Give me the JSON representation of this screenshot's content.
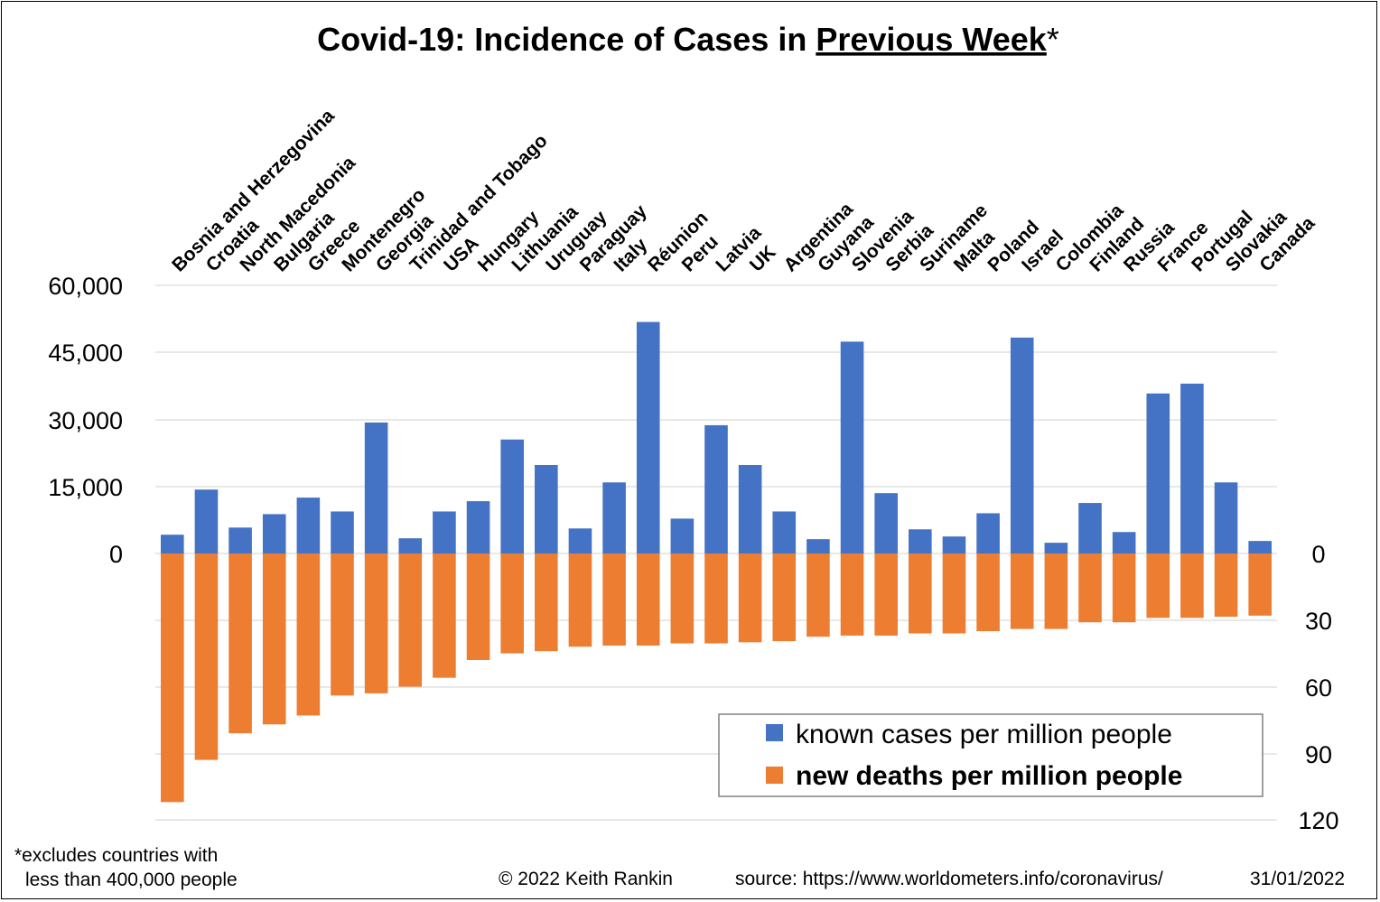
{
  "chart_data": {
    "type": "bar",
    "title": {
      "prefix": "Covid-19: Incidence of Cases in ",
      "underlined": "Previous Week",
      "suffix": "*"
    },
    "categories": [
      "Bosnia and Herzegovina",
      "Croatia",
      "North Macedonia",
      "Bulgaria",
      "Greece",
      "Montenegro",
      "Georgia",
      "Trinidad and Tobago",
      "USA",
      "Hungary",
      "Lithuania",
      "Uruguay",
      "Paraguay",
      "Italy",
      "Réunion",
      "Peru",
      "Latvia",
      "UK",
      "Argentina",
      "Guyana",
      "Slovenia",
      "Serbia",
      "Suriname",
      "Malta",
      "Poland",
      "Israel",
      "Colombia",
      "Finland",
      "Russia",
      "France",
      "Portugal",
      "Slovakia",
      "Canada"
    ],
    "series": [
      {
        "name": "known cases per million people",
        "axis": "left",
        "color": "#4472c4",
        "values": [
          4200,
          14300,
          5800,
          8800,
          12500,
          9400,
          29300,
          3400,
          9400,
          11700,
          25500,
          19800,
          5600,
          15900,
          51800,
          7800,
          28700,
          19800,
          9400,
          3200,
          47400,
          13500,
          5400,
          3800,
          9000,
          48300,
          2400,
          11300,
          4800,
          35800,
          38000,
          15900,
          2800
        ]
      },
      {
        "name": "new deaths per million people",
        "axis": "right",
        "color": "#ed7d31",
        "values": [
          112,
          93,
          81,
          77,
          73,
          64,
          63,
          60,
          56,
          48,
          45,
          44,
          42,
          41.5,
          41.5,
          40.5,
          40.5,
          40,
          39.5,
          37.5,
          37,
          37,
          36,
          36,
          35,
          34,
          34,
          31,
          31,
          29,
          29,
          28.5,
          28
        ]
      }
    ],
    "y_left": {
      "range": [
        0,
        60000
      ],
      "ticks": [
        "60,000",
        "45,000",
        "30,000",
        "15,000",
        "0"
      ]
    },
    "y_right": {
      "range": [
        0,
        120
      ],
      "ticks": [
        "0",
        "30",
        "60",
        "90",
        "120"
      ]
    },
    "grid": true,
    "legend_position": "bottom-right"
  },
  "footnote": {
    "line1": "*excludes countries with",
    "line2": "less than 400,000 people"
  },
  "credits": {
    "copyright": "© 2022   Keith Rankin",
    "source": "source: https://www.worldometers.info/coronavirus/",
    "date": "31/01/2022"
  }
}
